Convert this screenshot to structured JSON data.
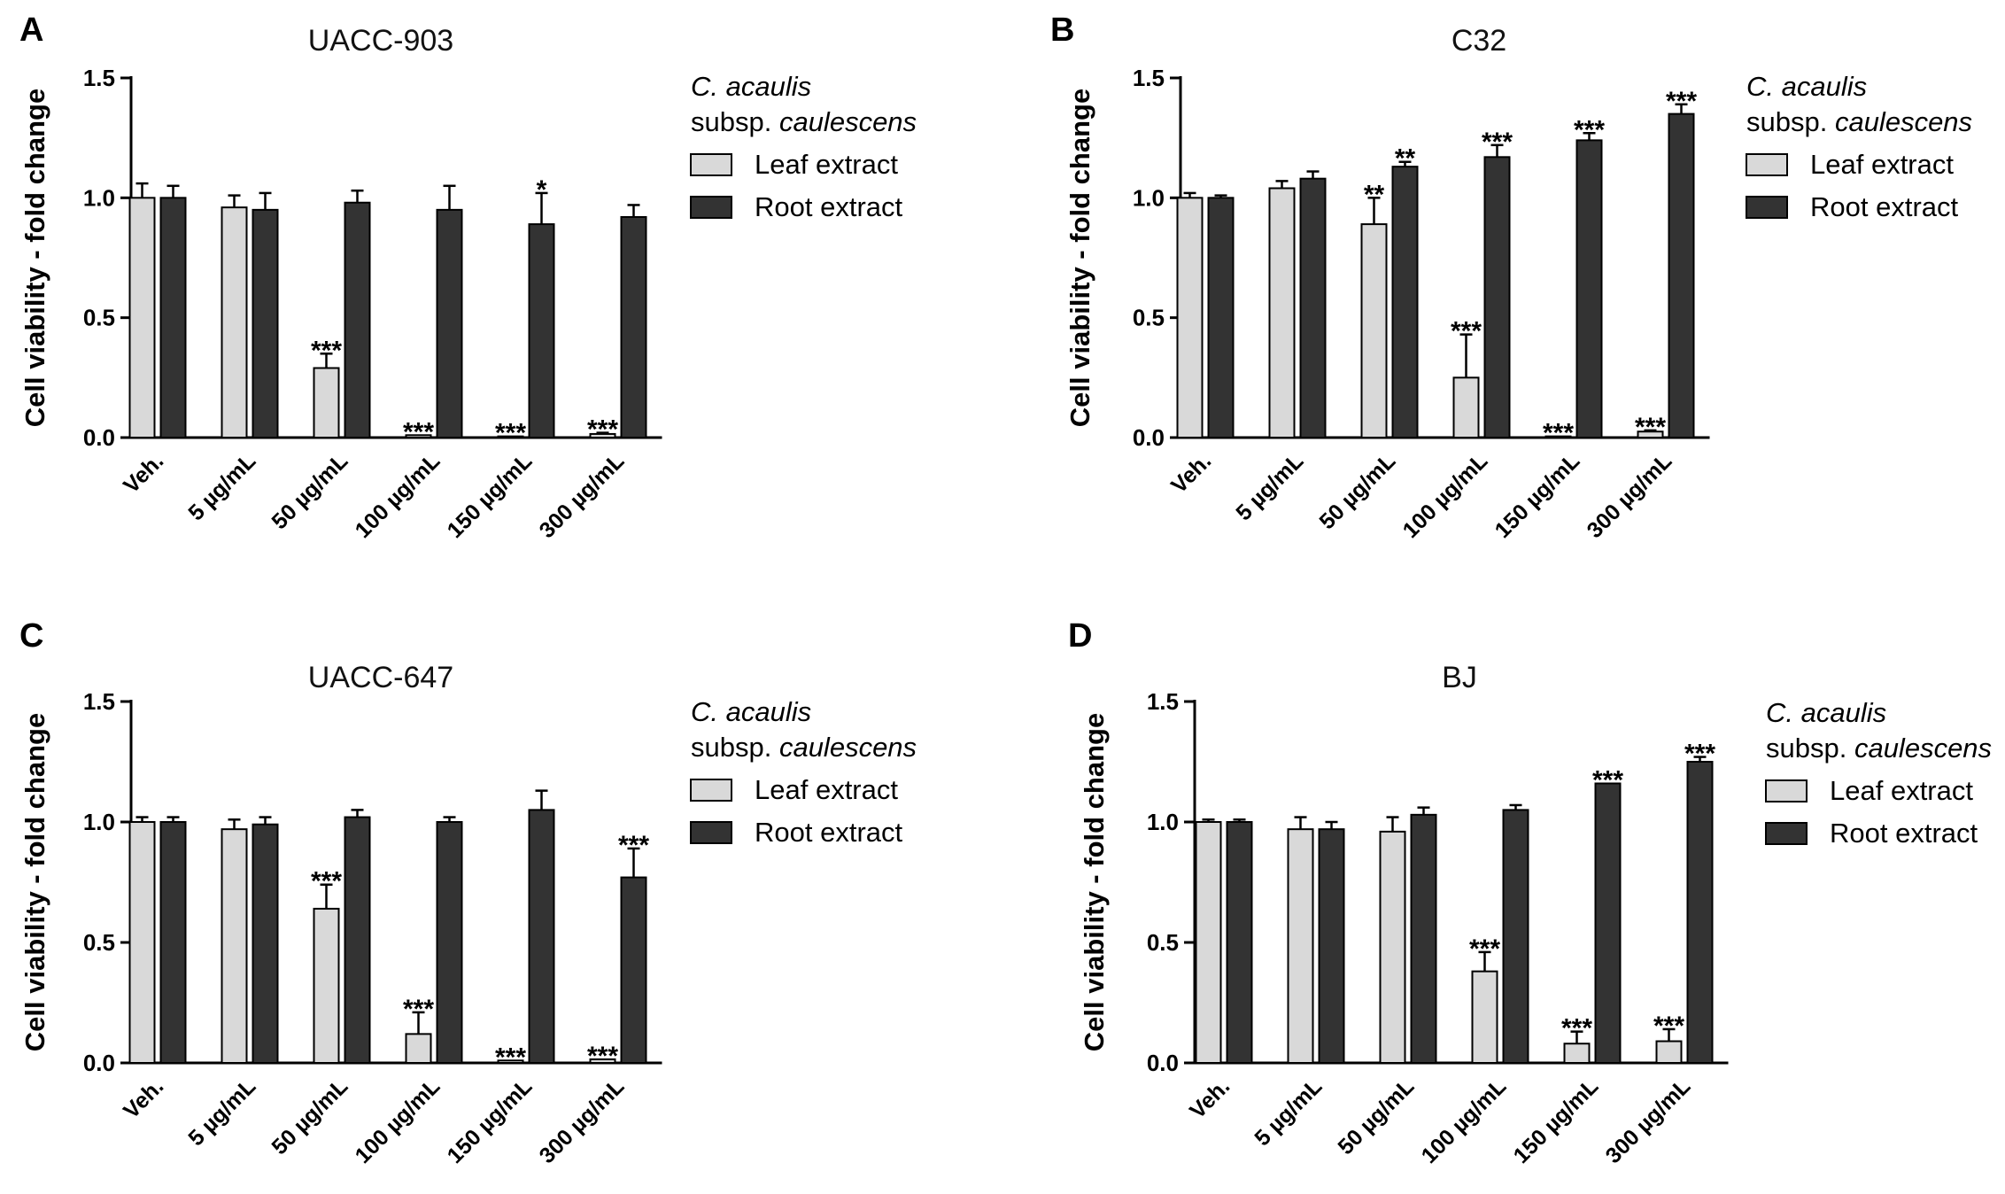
{
  "figure": {
    "colors": {
      "leaf": "#d9d9d9",
      "root": "#333333",
      "axis": "#000000"
    }
  },
  "legend": {
    "title_line1": "C. acaulis",
    "title_line2_prefix": "subsp. ",
    "title_line2_italic": "caulescens",
    "leaf_label": "Leaf extract",
    "root_label": "Root extract"
  },
  "chart_data": [
    {
      "panel": "A",
      "type": "bar",
      "title": "UACC-903",
      "ylabel": "Cell viability - fold change",
      "xlabel": "",
      "ylim": [
        0,
        1.5
      ],
      "yticks": [
        "0.0",
        "0.5",
        "1.0",
        "1.5"
      ],
      "categories": [
        "Veh.",
        "5 µg/mL",
        "50 µg/mL",
        "100 µg/mL",
        "150 µg/mL",
        "300 µg/mL"
      ],
      "series": [
        {
          "name": "Leaf extract",
          "values": [
            1.0,
            0.96,
            0.29,
            0.01,
            0.005,
            0.015
          ],
          "errors": [
            0.06,
            0.05,
            0.06,
            0.0,
            0.0,
            0.005
          ],
          "significance": [
            "",
            "",
            "***",
            "***",
            "***",
            "***"
          ]
        },
        {
          "name": "Root extract",
          "values": [
            1.0,
            0.95,
            0.98,
            0.95,
            0.89,
            0.92
          ],
          "errors": [
            0.05,
            0.07,
            0.05,
            0.1,
            0.13,
            0.05
          ],
          "significance": [
            "",
            "",
            "",
            "",
            "*",
            ""
          ]
        }
      ]
    },
    {
      "panel": "B",
      "type": "bar",
      "title": "C32",
      "ylabel": "Cell viability - fold change",
      "xlabel": "",
      "ylim": [
        0,
        1.5
      ],
      "yticks": [
        "0.0",
        "0.5",
        "1.0",
        "1.5"
      ],
      "categories": [
        "Veh.",
        "5 µg/mL",
        "50 µg/mL",
        "100 µg/mL",
        "150 µg/mL",
        "300 µg/mL"
      ],
      "series": [
        {
          "name": "Leaf extract",
          "values": [
            1.0,
            1.04,
            0.89,
            0.25,
            0.005,
            0.025
          ],
          "errors": [
            0.02,
            0.03,
            0.11,
            0.18,
            0.0,
            0.005
          ],
          "significance": [
            "",
            "",
            "**",
            "***",
            "***",
            "***"
          ]
        },
        {
          "name": "Root extract",
          "values": [
            1.0,
            1.08,
            1.13,
            1.17,
            1.24,
            1.35
          ],
          "errors": [
            0.01,
            0.03,
            0.02,
            0.05,
            0.03,
            0.04
          ],
          "significance": [
            "",
            "",
            "**",
            "***",
            "***",
            "***"
          ]
        }
      ]
    },
    {
      "panel": "C",
      "type": "bar",
      "title": "UACC-647",
      "ylabel": "Cell viability - fold change",
      "xlabel": "",
      "ylim": [
        0,
        1.5
      ],
      "yticks": [
        "0.0",
        "0.5",
        "1.0",
        "1.5"
      ],
      "categories": [
        "Veh.",
        "5 µg/mL",
        "50 µg/mL",
        "100 µg/mL",
        "150 µg/mL",
        "300 µg/mL"
      ],
      "series": [
        {
          "name": "Leaf extract",
          "values": [
            1.0,
            0.97,
            0.64,
            0.12,
            0.01,
            0.015
          ],
          "errors": [
            0.02,
            0.04,
            0.1,
            0.09,
            0.0,
            0.0
          ],
          "significance": [
            "",
            "",
            "***",
            "***",
            "***",
            "***"
          ]
        },
        {
          "name": "Root extract",
          "values": [
            1.0,
            0.99,
            1.02,
            1.0,
            1.05,
            0.77
          ],
          "errors": [
            0.02,
            0.03,
            0.03,
            0.02,
            0.08,
            0.12
          ],
          "significance": [
            "",
            "",
            "",
            "",
            "",
            "***"
          ]
        }
      ]
    },
    {
      "panel": "D",
      "type": "bar",
      "title": "BJ",
      "ylabel": "Cell viability - fold change",
      "xlabel": "",
      "ylim": [
        0,
        1.5
      ],
      "yticks": [
        "0.0",
        "0.5",
        "1.0",
        "1.5"
      ],
      "categories": [
        "Veh.",
        "5 µg/mL",
        "50 µg/mL",
        "100 µg/mL",
        "150 µg/mL",
        "300 µg/mL"
      ],
      "series": [
        {
          "name": "Leaf extract",
          "values": [
            1.0,
            0.97,
            0.96,
            0.38,
            0.08,
            0.09
          ],
          "errors": [
            0.01,
            0.05,
            0.06,
            0.08,
            0.05,
            0.05
          ],
          "significance": [
            "",
            "",
            "",
            "***",
            "***",
            "***"
          ]
        },
        {
          "name": "Root extract",
          "values": [
            1.0,
            0.97,
            1.03,
            1.05,
            1.16,
            1.25
          ],
          "errors": [
            0.01,
            0.03,
            0.03,
            0.02,
            0.0,
            0.02
          ],
          "significance": [
            "",
            "",
            "",
            "",
            "***",
            "***"
          ]
        }
      ]
    }
  ]
}
